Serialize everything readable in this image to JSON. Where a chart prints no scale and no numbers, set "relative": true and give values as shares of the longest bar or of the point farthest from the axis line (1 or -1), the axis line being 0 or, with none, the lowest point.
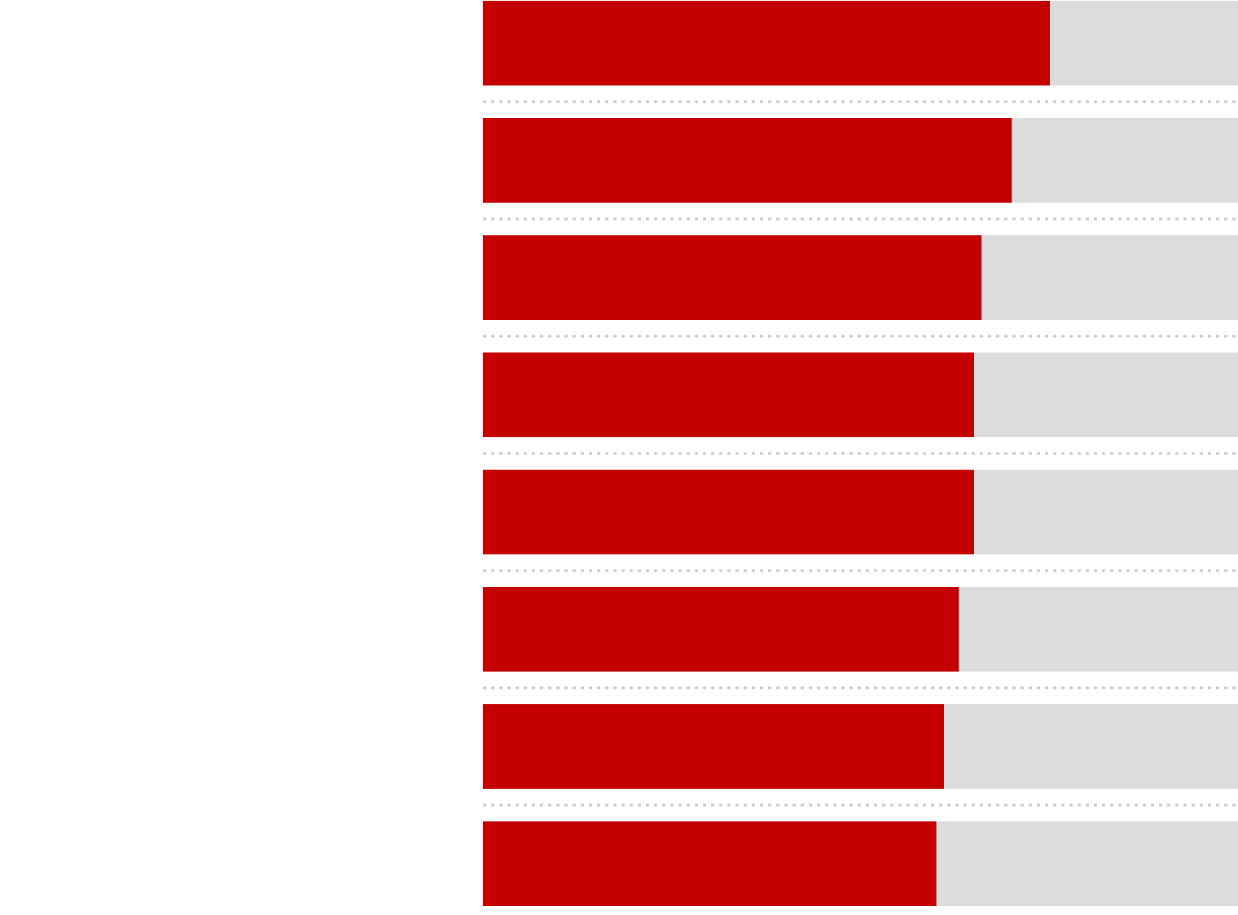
{
  "chart_data": {
    "type": "bar",
    "orientation": "horizontal",
    "stacked": true,
    "relative": true,
    "grid": "y",
    "categories": [
      null,
      null,
      null,
      null,
      null,
      null,
      null,
      null
    ],
    "series": [
      {
        "color": "#c40000",
        "values": [
          0.75,
          0.7,
          0.66,
          0.65,
          0.65,
          0.63,
          0.61,
          0.6
        ]
      },
      {
        "color": "#dcdcdc",
        "values": [
          0.25,
          0.3,
          0.34,
          0.35,
          0.35,
          0.37,
          0.39,
          0.4
        ]
      }
    ]
  }
}
